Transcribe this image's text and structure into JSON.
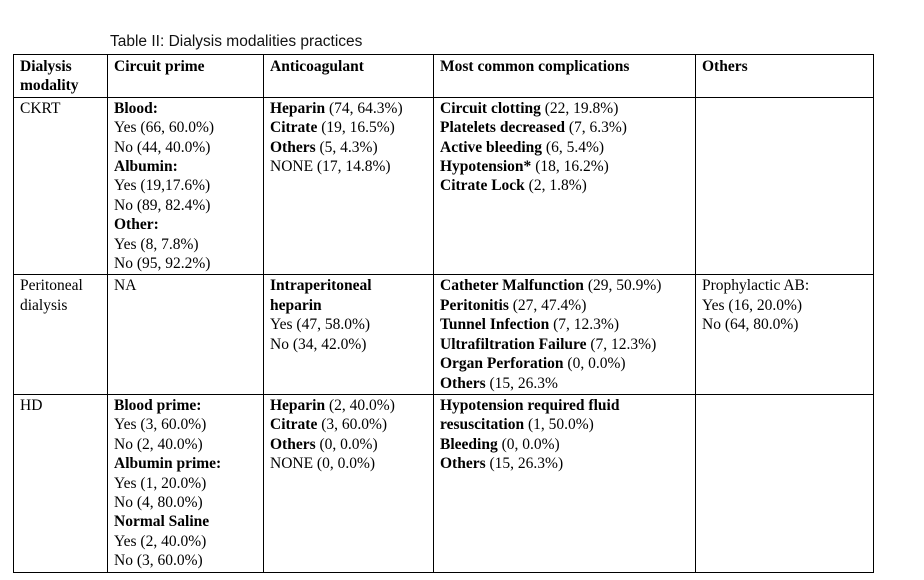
{
  "caption": "Table II: Dialysis modalities practices",
  "headers": {
    "modality": "Dialysis modality",
    "circuit_prime": "Circuit prime",
    "anticoagulant": "Anticoagulant",
    "complications": "Most common complications",
    "others": "Others"
  },
  "rows": [
    {
      "modality": "CKRT",
      "circuit_prime": [
        {
          "bold": "Blood:",
          "rest": ""
        },
        {
          "bold": "",
          "rest": "Yes (66, 60.0%)"
        },
        {
          "bold": "",
          "rest": "No (44, 40.0%)"
        },
        {
          "bold": "Albumin:",
          "rest": ""
        },
        {
          "bold": "",
          "rest": "Yes (19,17.6%)"
        },
        {
          "bold": "",
          "rest": "No (89, 82.4%)"
        },
        {
          "bold": "Other:",
          "rest": ""
        },
        {
          "bold": "",
          "rest": "Yes (8, 7.8%)"
        },
        {
          "bold": "",
          "rest": "No (95, 92.2%)"
        }
      ],
      "anticoagulant": [
        {
          "bold": "Heparin",
          "rest": " (74, 64.3%)"
        },
        {
          "bold": "Citrate",
          "rest": " (19, 16.5%)"
        },
        {
          "bold": "Others",
          "rest": " (5, 4.3%)"
        },
        {
          "bold": "",
          "rest": "NONE (17, 14.8%)"
        }
      ],
      "complications": [
        {
          "bold": "Circuit clotting",
          "rest": " (22, 19.8%)"
        },
        {
          "bold": "Platelets decreased",
          "rest": " (7, 6.3%)"
        },
        {
          "bold": "Active bleeding",
          "rest": " (6, 5.4%)"
        },
        {
          "bold": "Hypotension*",
          "rest": " (18, 16.2%)"
        },
        {
          "bold": "Citrate Lock",
          "rest": " (2, 1.8%)"
        }
      ],
      "others": []
    },
    {
      "modality": "Peritoneal dialysis",
      "circuit_prime": [
        {
          "bold": "",
          "rest": "NA"
        }
      ],
      "anticoagulant": [
        {
          "bold": "Intraperitoneal",
          "rest": ""
        },
        {
          "bold": "heparin",
          "rest": ""
        },
        {
          "bold": "",
          "rest": "Yes (47, 58.0%)"
        },
        {
          "bold": "",
          "rest": "No (34, 42.0%)"
        }
      ],
      "complications": [
        {
          "bold": "Catheter Malfunction",
          "rest": " (29, 50.9%)"
        },
        {
          "bold": "Peritonitis",
          "rest": " (27, 47.4%)"
        },
        {
          "bold": "Tunnel Infection",
          "rest": " (7, 12.3%)"
        },
        {
          "bold": "Ultrafiltration Failure",
          "rest": " (7, 12.3%)"
        },
        {
          "bold": "Organ Perforation",
          "rest": " (0, 0.0%)"
        },
        {
          "bold": "Others",
          "rest": " (15, 26.3%"
        }
      ],
      "others": [
        {
          "bold": "",
          "rest": "Prophylactic AB:"
        },
        {
          "bold": "",
          "rest": "Yes (16, 20.0%)"
        },
        {
          "bold": "",
          "rest": "No (64, 80.0%)"
        }
      ]
    },
    {
      "modality": "HD",
      "circuit_prime": [
        {
          "bold": "Blood prime:",
          "rest": ""
        },
        {
          "bold": "",
          "rest": "Yes (3, 60.0%)"
        },
        {
          "bold": "",
          "rest": "No (2, 40.0%)"
        },
        {
          "bold": "Albumin prime:",
          "rest": ""
        },
        {
          "bold": "",
          "rest": "Yes (1, 20.0%)"
        },
        {
          "bold": "",
          "rest": "No (4, 80.0%)"
        },
        {
          "bold": "Normal Saline",
          "rest": ""
        },
        {
          "bold": "",
          "rest": "Yes (2, 40.0%)"
        },
        {
          "bold": "",
          "rest": "No (3, 60.0%)"
        }
      ],
      "anticoagulant": [
        {
          "bold": "Heparin",
          "rest": " (2, 40.0%)"
        },
        {
          "bold": "Citrate",
          "rest": " (3, 60.0%)"
        },
        {
          "bold": "Others",
          "rest": " (0, 0.0%)"
        },
        {
          "bold": "",
          "rest": "NONE (0, 0.0%)"
        }
      ],
      "complications": [
        {
          "bold": "Hypotension required fluid",
          "rest": ""
        },
        {
          "bold": "resuscitation",
          "rest": " (1, 50.0%)"
        },
        {
          "bold": "Bleeding",
          "rest": " (0, 0.0%)"
        },
        {
          "bold": "Others",
          "rest": " (15, 26.3%)"
        }
      ],
      "others": []
    }
  ]
}
